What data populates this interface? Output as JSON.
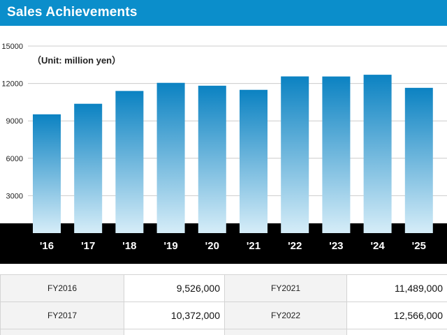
{
  "header": {
    "title": "Sales Achievements"
  },
  "chart_data": {
    "type": "bar",
    "unit_label": "（Unit: million yen）",
    "categories": [
      "'16",
      "'17",
      "'18",
      "'19",
      "'20",
      "'21",
      "'22",
      "'23",
      "'24",
      "'25"
    ],
    "values": [
      9526,
      10372,
      11400,
      12050,
      11820,
      11489,
      12566,
      12560,
      12700,
      11650
    ],
    "yticks": [
      3000,
      6000,
      9000,
      12000,
      15000
    ],
    "ylim": [
      0,
      15000
    ],
    "grid": true,
    "colors": {
      "bar_top": "#0b82c2",
      "bar_bottom": "#d6edf8",
      "band": "#000000",
      "grid": "#cccccc"
    }
  },
  "table": {
    "rows": [
      {
        "left_label": "FY2016",
        "left_value": "9,526,000",
        "right_label": "FY2021",
        "right_value": "11,489,000"
      },
      {
        "left_label": "FY2017",
        "left_value": "10,372,000",
        "right_label": "FY2022",
        "right_value": "12,566,000"
      }
    ]
  }
}
